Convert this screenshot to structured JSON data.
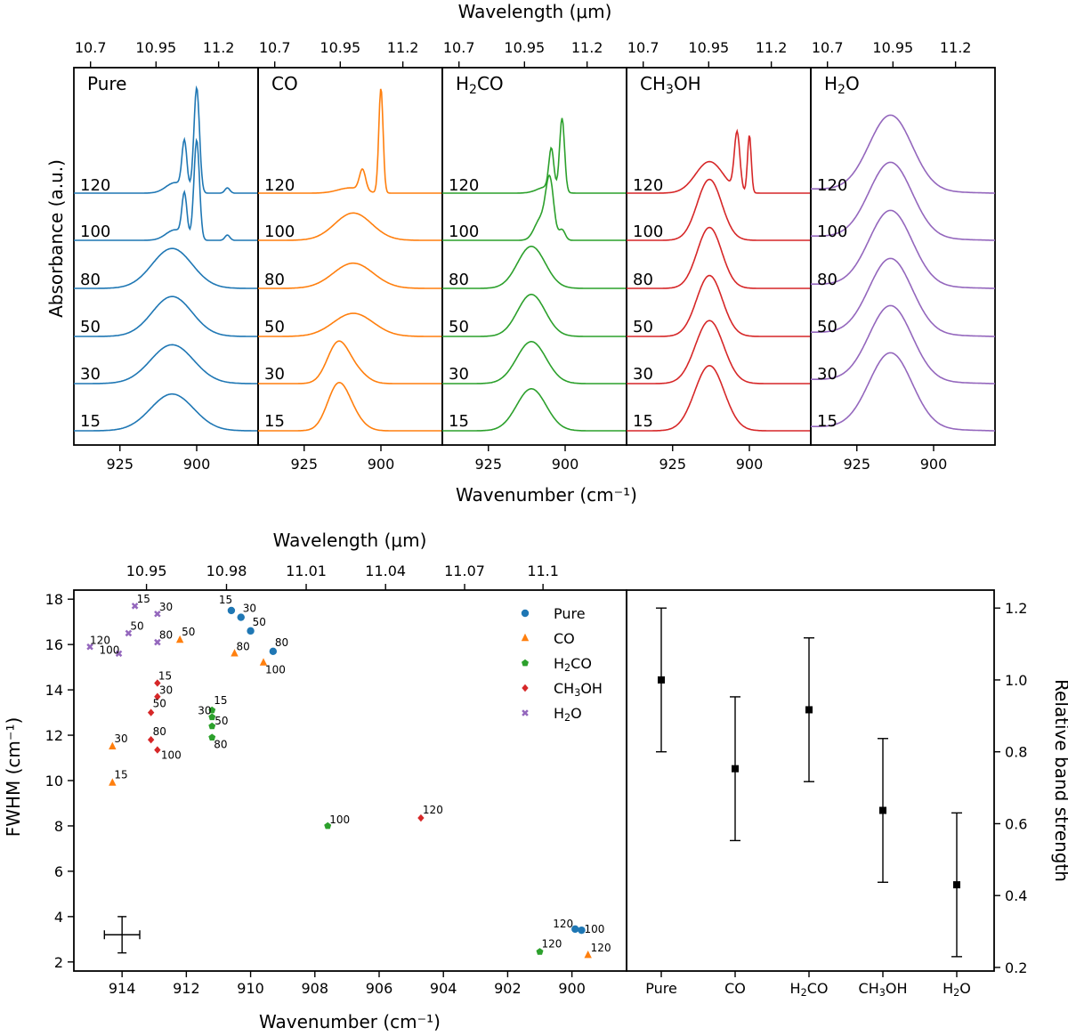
{
  "chart_data": [
    {
      "type": "line",
      "title": "",
      "xlabel": "Wavenumber (cm⁻¹)",
      "xlabel_top": "Wavelength (μm)",
      "ylabel": "Absorbance (a.u.)",
      "xlim": [
        940,
        880
      ],
      "x_ticks": [
        "925",
        "900"
      ],
      "x_ticks_top": [
        "10.7",
        "10.95",
        "11.2"
      ],
      "temperatures": [
        "120",
        "100",
        "80",
        "50",
        "30",
        "15"
      ],
      "panels": [
        {
          "name": "Pure",
          "label_main": "Pure",
          "label_sub": "",
          "label_tail": "",
          "color": "#1f77b4",
          "series": [
            {
              "temp": "120",
              "peaks": [
                [
                  900,
                  1.0,
                  0.9
                ],
                [
                  904,
                  0.45,
                  0.8
                ],
                [
                  907,
                  0.1,
                  3.0
                ],
                [
                  890,
                  0.05,
                  0.8
                ]
              ]
            },
            {
              "temp": "100",
              "peaks": [
                [
                  900,
                  0.95,
                  0.9
                ],
                [
                  904,
                  0.4,
                  0.8
                ],
                [
                  907,
                  0.1,
                  3.0
                ],
                [
                  890,
                  0.05,
                  0.8
                ]
              ]
            },
            {
              "temp": "80",
              "peaks": [
                [
                  908,
                  0.38,
                  6.5
                ]
              ]
            },
            {
              "temp": "50",
              "peaks": [
                [
                  908,
                  0.38,
                  6.5
                ]
              ]
            },
            {
              "temp": "30",
              "peaks": [
                [
                  908,
                  0.37,
                  7.0
                ]
              ]
            },
            {
              "temp": "15",
              "peaks": [
                [
                  908,
                  0.35,
                  7.0
                ]
              ]
            }
          ]
        },
        {
          "name": "CO",
          "label_main": "CO",
          "label_sub": "",
          "label_tail": "",
          "color": "#ff7f0e",
          "series": [
            {
              "temp": "120",
              "peaks": [
                [
                  900,
                  1.0,
                  0.7
                ],
                [
                  906,
                  0.2,
                  1.0
                ],
                [
                  910,
                  0.05,
                  4.0
                ]
              ]
            },
            {
              "temp": "100",
              "peaks": [
                [
                  909,
                  0.26,
                  6.0
                ]
              ]
            },
            {
              "temp": "80",
              "peaks": [
                [
                  909,
                  0.24,
                  6.5
                ]
              ]
            },
            {
              "temp": "50",
              "peaks": [
                [
                  909,
                  0.22,
                  6.5
                ]
              ]
            },
            {
              "temp": "30",
              "peaks": [
                [
                  914,
                  0.38,
                  3.5
                ],
                [
                  908,
                  0.1,
                  3.5
                ]
              ]
            },
            {
              "temp": "15",
              "peaks": [
                [
                  914,
                  0.42,
                  3.5
                ],
                [
                  909,
                  0.1,
                  3.5
                ]
              ]
            }
          ]
        },
        {
          "name": "H2CO",
          "label_main": "H",
          "label_sub": "2",
          "label_tail": "CO",
          "color": "#2ca02c",
          "series": [
            {
              "temp": "120",
              "peaks": [
                [
                  901,
                  0.7,
                  0.8
                ],
                [
                  904.5,
                  0.38,
                  0.8
                ],
                [
                  906,
                  0.06,
                  3.0
                ]
              ]
            },
            {
              "temp": "100",
              "peaks": [
                [
                  905,
                  0.55,
                  1.3
                ],
                [
                  908,
                  0.2,
                  2.0
                ],
                [
                  901,
                  0.1,
                  1.0
                ]
              ]
            },
            {
              "temp": "80",
              "peaks": [
                [
                  911,
                  0.4,
                  4.5
                ]
              ]
            },
            {
              "temp": "50",
              "peaks": [
                [
                  911,
                  0.4,
                  4.5
                ]
              ]
            },
            {
              "temp": "30",
              "peaks": [
                [
                  911,
                  0.4,
                  4.8
                ]
              ]
            },
            {
              "temp": "15",
              "peaks": [
                [
                  911,
                  0.4,
                  4.8
                ]
              ]
            }
          ]
        },
        {
          "name": "CH3OH",
          "label_main": "CH",
          "label_sub": "3",
          "label_tail": "OH",
          "color": "#d62728",
          "series": [
            {
              "temp": "120",
              "peaks": [
                [
                  904,
                  0.55,
                  0.9
                ],
                [
                  900,
                  0.55,
                  0.6
                ],
                [
                  913,
                  0.3,
                  4.5
                ]
              ]
            },
            {
              "temp": "100",
              "peaks": [
                [
                  913,
                  0.58,
                  4.0
                ]
              ]
            },
            {
              "temp": "80",
              "peaks": [
                [
                  913,
                  0.58,
                  4.0
                ]
              ]
            },
            {
              "temp": "50",
              "peaks": [
                [
                  913,
                  0.58,
                  4.2
                ]
              ]
            },
            {
              "temp": "30",
              "peaks": [
                [
                  913,
                  0.6,
                  4.6
                ]
              ]
            },
            {
              "temp": "15",
              "peaks": [
                [
                  913,
                  0.62,
                  4.8
                ]
              ]
            }
          ]
        },
        {
          "name": "H2O",
          "label_main": "H",
          "label_sub": "2",
          "label_tail": "O",
          "color": "#9467bd",
          "series": [
            {
              "temp": "120",
              "peaks": [
                [
                  914,
                  0.72,
                  7.0
                ]
              ]
            },
            {
              "temp": "100",
              "peaks": [
                [
                  914,
                  0.72,
                  7.0
                ]
              ]
            },
            {
              "temp": "80",
              "peaks": [
                [
                  914,
                  0.72,
                  7.0
                ]
              ]
            },
            {
              "temp": "50",
              "peaks": [
                [
                  914,
                  0.72,
                  7.0
                ]
              ]
            },
            {
              "temp": "30",
              "peaks": [
                [
                  914,
                  0.72,
                  7.0
                ]
              ]
            },
            {
              "temp": "15",
              "peaks": [
                [
                  914,
                  0.72,
                  7.0
                ]
              ]
            }
          ]
        }
      ]
    },
    {
      "type": "scatter",
      "title": "",
      "xlabel": "Wavenumber (cm⁻¹)",
      "xlabel_top": "Wavelength (μm)",
      "ylabel": "FWHM (cm⁻¹)",
      "xlim": [
        915.5,
        898.3
      ],
      "ylim": [
        1.6,
        18.4
      ],
      "x_ticks": [
        914,
        912,
        910,
        908,
        906,
        904,
        902,
        900
      ],
      "y_ticks": [
        2,
        4,
        6,
        8,
        10,
        12,
        14,
        16,
        18
      ],
      "x_ticks_top": [
        {
          "label": "10.95",
          "wavenumber": 913.24
        },
        {
          "label": "10.98",
          "wavenumber": 910.75
        },
        {
          "label": "11.01",
          "wavenumber": 908.27
        },
        {
          "label": "11.04",
          "wavenumber": 905.8
        },
        {
          "label": "11.07",
          "wavenumber": 903.34
        },
        {
          "label": "11.1",
          "wavenumber": 900.9
        }
      ],
      "typical_error": {
        "x": 914.0,
        "y": 3.2,
        "dx": 0.55,
        "dy": 0.8
      },
      "legend_position": "upper-right",
      "series": [
        {
          "name": "Pure",
          "label_main": "Pure",
          "label_sub": "",
          "label_tail": "",
          "color": "#1f77b4",
          "marker": "circle",
          "points": [
            {
              "x": 910.6,
              "y": 17.5,
              "label": "15"
            },
            {
              "x": 910.3,
              "y": 17.2,
              "label": "30"
            },
            {
              "x": 910.0,
              "y": 16.6,
              "label": "50"
            },
            {
              "x": 909.3,
              "y": 15.7,
              "label": "80"
            },
            {
              "x": 899.7,
              "y": 3.4,
              "label": "100"
            },
            {
              "x": 899.9,
              "y": 3.45,
              "label": "120"
            }
          ]
        },
        {
          "name": "CO",
          "label_main": "CO",
          "label_sub": "",
          "label_tail": "",
          "color": "#ff7f0e",
          "marker": "triangle",
          "points": [
            {
              "x": 914.3,
              "y": 9.9,
              "label": "15"
            },
            {
              "x": 914.3,
              "y": 11.5,
              "label": "30"
            },
            {
              "x": 912.2,
              "y": 16.2,
              "label": "50"
            },
            {
              "x": 910.5,
              "y": 15.6,
              "label": "80"
            },
            {
              "x": 909.6,
              "y": 15.2,
              "label": "100"
            },
            {
              "x": 899.5,
              "y": 2.3,
              "label": "120"
            }
          ]
        },
        {
          "name": "H2CO",
          "label_main": "H",
          "label_sub": "2",
          "label_tail": "CO",
          "color": "#2ca02c",
          "marker": "pentagon",
          "points": [
            {
              "x": 911.2,
              "y": 13.1,
              "label": "15"
            },
            {
              "x": 911.2,
              "y": 12.8,
              "label": "30"
            },
            {
              "x": 911.2,
              "y": 12.4,
              "label": "50"
            },
            {
              "x": 911.2,
              "y": 11.9,
              "label": "80"
            },
            {
              "x": 907.6,
              "y": 8.0,
              "label": "100"
            },
            {
              "x": 901.0,
              "y": 2.45,
              "label": "120"
            }
          ]
        },
        {
          "name": "CH3OH",
          "label_main": "CH",
          "label_sub": "3",
          "label_tail": "OH",
          "color": "#d62728",
          "marker": "diamond",
          "points": [
            {
              "x": 912.9,
              "y": 14.3,
              "label": "15"
            },
            {
              "x": 912.9,
              "y": 13.7,
              "label": "30"
            },
            {
              "x": 913.1,
              "y": 13.0,
              "label": "50"
            },
            {
              "x": 913.1,
              "y": 11.8,
              "label": "80"
            },
            {
              "x": 912.9,
              "y": 11.35,
              "label": "100"
            },
            {
              "x": 904.7,
              "y": 8.35,
              "label": "120"
            }
          ]
        },
        {
          "name": "H2O",
          "label_main": "H",
          "label_sub": "2",
          "label_tail": "O",
          "color": "#9467bd",
          "marker": "x-plus",
          "points": [
            {
              "x": 913.6,
              "y": 17.7,
              "label": "15"
            },
            {
              "x": 912.9,
              "y": 17.35,
              "label": "30"
            },
            {
              "x": 913.8,
              "y": 16.5,
              "label": "50"
            },
            {
              "x": 912.9,
              "y": 16.1,
              "label": "80"
            },
            {
              "x": 914.1,
              "y": 15.6,
              "label": "100"
            },
            {
              "x": 915.0,
              "y": 15.9,
              "label": "120"
            }
          ]
        }
      ]
    },
    {
      "type": "errorbar",
      "title": "",
      "ylabel": "Relative band strength",
      "ylim": [
        0.19,
        1.25
      ],
      "y_ticks": [
        "0.2",
        "0.4",
        "0.6",
        "0.8",
        "1.0",
        "1.2"
      ],
      "categories": [
        {
          "main": "Pure",
          "sub": "",
          "tail": ""
        },
        {
          "main": "CO",
          "sub": "",
          "tail": ""
        },
        {
          "main": "H",
          "sub": "2",
          "tail": "CO"
        },
        {
          "main": "CH",
          "sub": "3",
          "tail": "OH"
        },
        {
          "main": "H",
          "sub": "2",
          "tail": "O"
        }
      ],
      "values": [
        1.0,
        0.753,
        0.917,
        0.637,
        0.43
      ],
      "errors": [
        0.2,
        0.2,
        0.2,
        0.2,
        0.2
      ]
    }
  ]
}
